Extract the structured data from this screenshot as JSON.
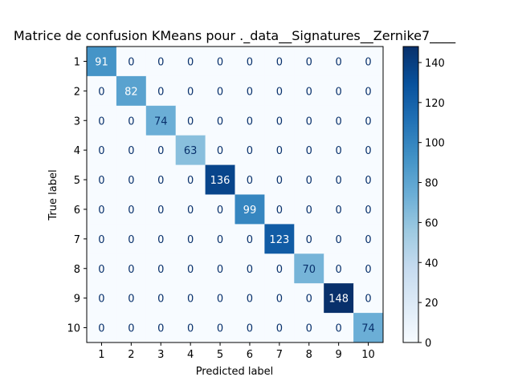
{
  "chart_data": {
    "type": "heatmap",
    "title": "Matrice de confusion KMeans pour ._data__Signatures__Zernike7____",
    "xlabel": "Predicted label",
    "ylabel": "True label",
    "x_categories": [
      "1",
      "2",
      "3",
      "4",
      "5",
      "6",
      "7",
      "8",
      "9",
      "10"
    ],
    "y_categories": [
      "1",
      "2",
      "3",
      "4",
      "5",
      "6",
      "7",
      "8",
      "9",
      "10"
    ],
    "values": [
      [
        91,
        0,
        0,
        0,
        0,
        0,
        0,
        0,
        0,
        0
      ],
      [
        0,
        82,
        0,
        0,
        0,
        0,
        0,
        0,
        0,
        0
      ],
      [
        0,
        0,
        74,
        0,
        0,
        0,
        0,
        0,
        0,
        0
      ],
      [
        0,
        0,
        0,
        63,
        0,
        0,
        0,
        0,
        0,
        0
      ],
      [
        0,
        0,
        0,
        0,
        136,
        0,
        0,
        0,
        0,
        0
      ],
      [
        0,
        0,
        0,
        0,
        0,
        99,
        0,
        0,
        0,
        0
      ],
      [
        0,
        0,
        0,
        0,
        0,
        0,
        123,
        0,
        0,
        0
      ],
      [
        0,
        0,
        0,
        0,
        0,
        0,
        0,
        70,
        0,
        0
      ],
      [
        0,
        0,
        0,
        0,
        0,
        0,
        0,
        0,
        148,
        0
      ],
      [
        0,
        0,
        0,
        0,
        0,
        0,
        0,
        0,
        0,
        74
      ]
    ],
    "colormap": "Blues",
    "vmin": 0,
    "vmax": 148,
    "colorbar_ticks": [
      0,
      20,
      40,
      60,
      80,
      100,
      120,
      140
    ]
  }
}
